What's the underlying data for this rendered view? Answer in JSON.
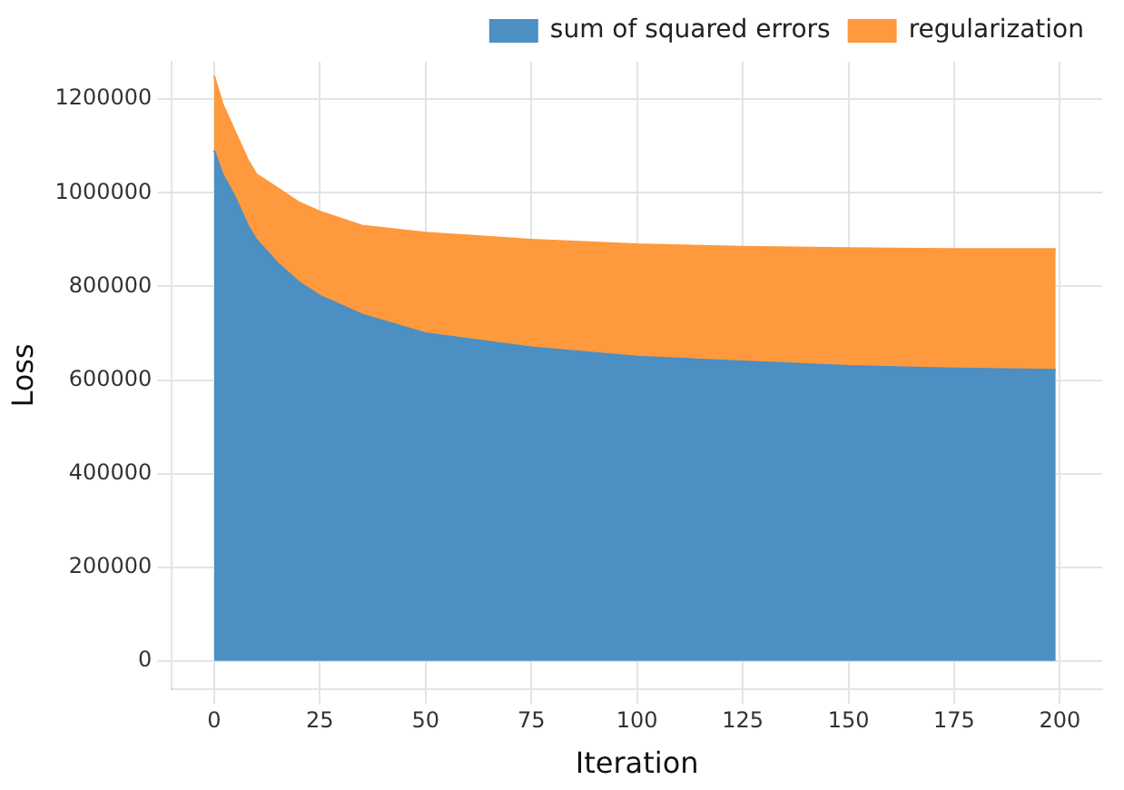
{
  "chart_data": {
    "type": "area",
    "stacked": true,
    "xlabel": "Iteration",
    "ylabel": "Loss",
    "x": [
      0,
      2,
      5,
      8,
      10,
      15,
      20,
      25,
      35,
      50,
      75,
      100,
      125,
      150,
      175,
      199
    ],
    "series": [
      {
        "name": "sum of squared errors",
        "color": "#4b8fc3",
        "values": [
          1090000,
          1040000,
          990000,
          930000,
          900000,
          850000,
          810000,
          780000,
          740000,
          700000,
          670000,
          650000,
          640000,
          630000,
          625000,
          622000
        ]
      },
      {
        "name": "regularization",
        "color": "#ff993e",
        "values": [
          160000,
          150000,
          140000,
          140000,
          140000,
          160000,
          170000,
          180000,
          190000,
          215000,
          230000,
          240000,
          245000,
          252000,
          255000,
          258000
        ]
      }
    ],
    "xlim": [
      -10,
      210
    ],
    "xticks": [
      0,
      25,
      50,
      75,
      100,
      125,
      150,
      175,
      200
    ],
    "ylim": [
      -60000,
      1280000
    ],
    "yticks": [
      0,
      200000,
      400000,
      600000,
      800000,
      1000000,
      1200000
    ],
    "grid": true,
    "legend": "top right"
  }
}
